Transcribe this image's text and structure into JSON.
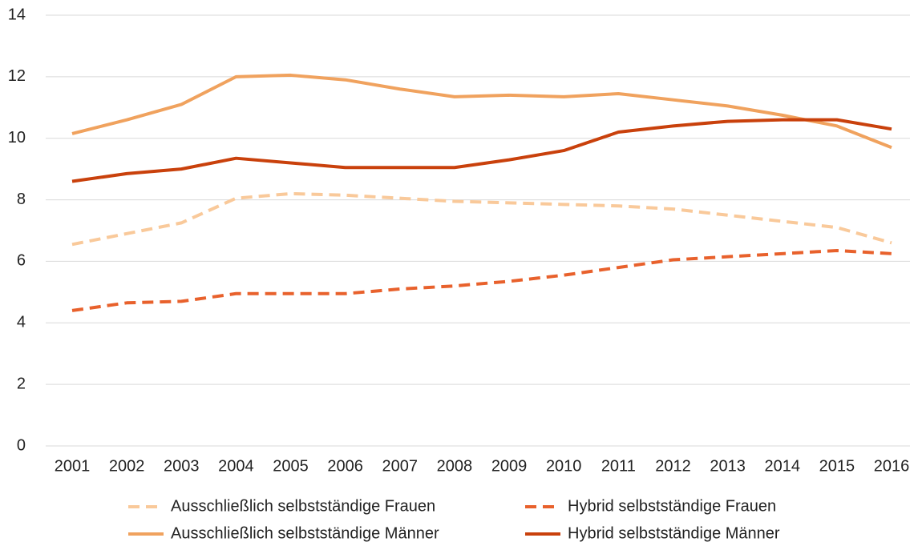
{
  "chart_data": {
    "type": "line",
    "categories": [
      "2001",
      "2002",
      "2003",
      "2004",
      "2005",
      "2006",
      "2007",
      "2008",
      "2009",
      "2010",
      "2011",
      "2012",
      "2013",
      "2014",
      "2015",
      "2016"
    ],
    "series": [
      {
        "name": "Ausschließlich selbstständige Frauen",
        "color": "#f9c99a",
        "dashed": true,
        "values": [
          6.55,
          6.9,
          7.25,
          8.05,
          8.2,
          8.15,
          8.05,
          7.95,
          7.9,
          7.85,
          7.8,
          7.7,
          7.5,
          7.3,
          7.1,
          6.6
        ]
      },
      {
        "name": "Hybrid selbstständige Frauen",
        "color": "#e8612c",
        "dashed": true,
        "values": [
          4.4,
          4.65,
          4.7,
          4.95,
          4.95,
          4.95,
          5.1,
          5.2,
          5.35,
          5.55,
          5.8,
          6.05,
          6.15,
          6.25,
          6.35,
          6.25
        ]
      },
      {
        "name": "Ausschließlich selbstständige Männer",
        "color": "#f0a25e",
        "dashed": false,
        "values": [
          10.15,
          10.6,
          11.1,
          12.0,
          12.05,
          11.9,
          11.6,
          11.35,
          11.4,
          11.35,
          11.45,
          11.25,
          11.05,
          10.75,
          10.4,
          9.7
        ]
      },
      {
        "name": "Hybrid selbstständige Männer",
        "color": "#c9410c",
        "dashed": false,
        "values": [
          8.6,
          8.85,
          9.0,
          9.35,
          9.2,
          9.05,
          9.05,
          9.05,
          9.3,
          9.6,
          10.2,
          10.4,
          10.55,
          10.6,
          10.6,
          10.3
        ]
      }
    ],
    "ylim": [
      0,
      14
    ],
    "yticks": [
      0,
      2,
      4,
      6,
      8,
      10,
      12,
      14
    ],
    "grid": true
  }
}
